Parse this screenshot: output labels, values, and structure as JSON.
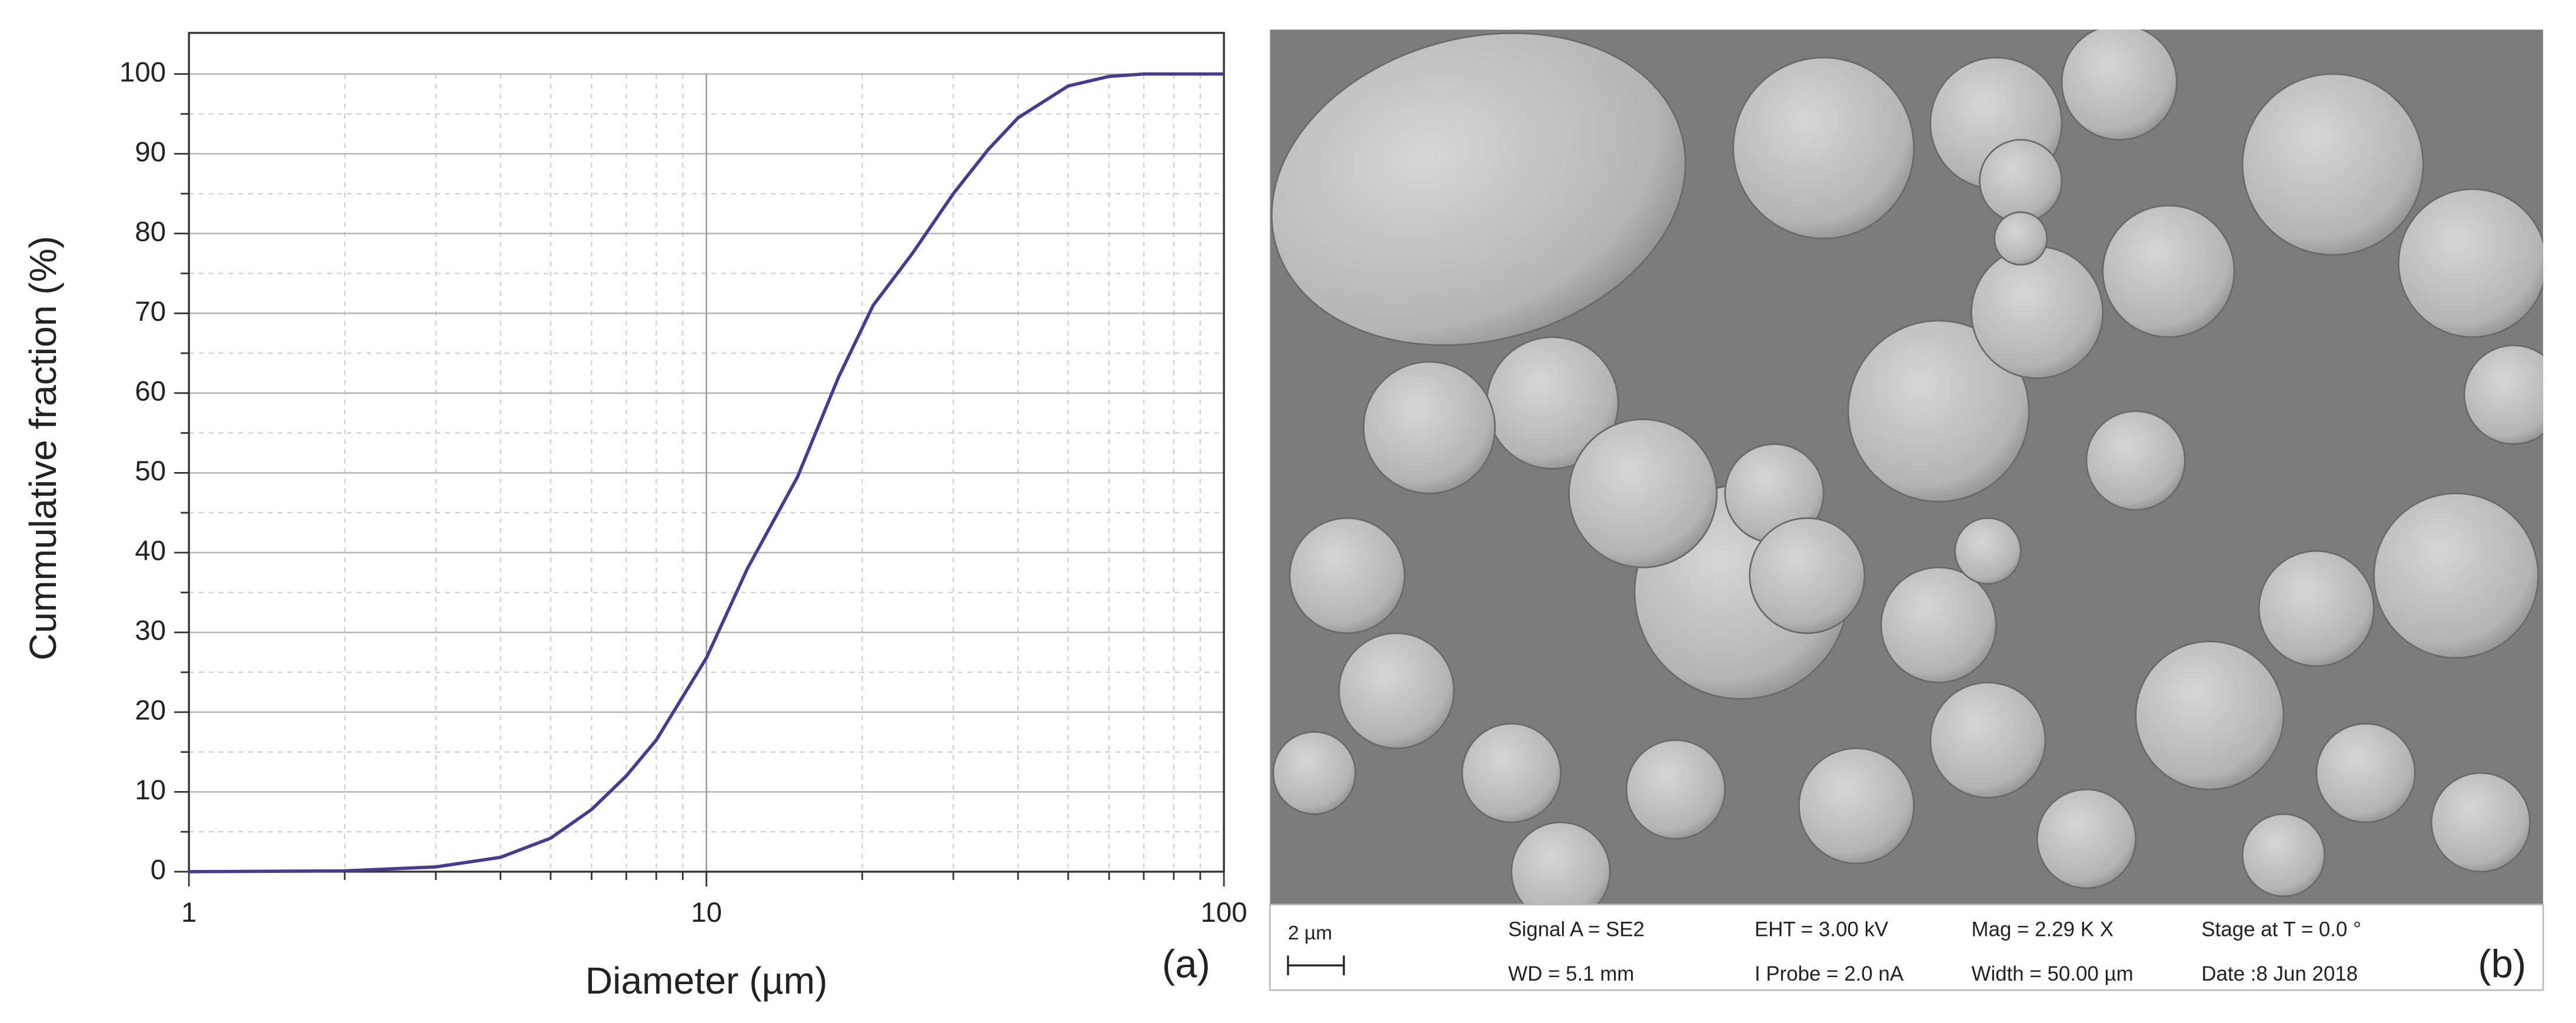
{
  "chart_data": {
    "type": "line",
    "xlabel": "Diameter (µm)",
    "ylabel": "Cummulative fraction (%)",
    "annotation": "(a)",
    "xscale": "log",
    "x": [
      1,
      2,
      3,
      4,
      5,
      6,
      7,
      8,
      10,
      12,
      15,
      18,
      21,
      25,
      30,
      35,
      40,
      50,
      60,
      70,
      100
    ],
    "values": [
      0,
      0.1,
      0.6,
      1.8,
      4.2,
      7.8,
      12,
      16.5,
      26.8,
      38,
      49.5,
      62,
      71,
      77.5,
      85,
      90.5,
      94.5,
      98.5,
      99.7,
      100,
      100
    ],
    "color": "#4b3a8c",
    "xlim": [
      1,
      100
    ],
    "xticks": [
      1,
      10,
      100
    ],
    "ylim": [
      0,
      100
    ],
    "yticks": [
      0,
      10,
      20,
      30,
      40,
      50,
      60,
      70,
      80,
      90,
      100
    ],
    "xminor": [
      2,
      3,
      4,
      5,
      6,
      7,
      8,
      9,
      20,
      30,
      40,
      50,
      60,
      70,
      80,
      90
    ],
    "yminor": [
      5,
      15,
      25,
      35,
      45,
      55,
      65,
      75,
      85,
      95
    ],
    "grid": true
  },
  "sem_panel": {
    "annotation": "(b)",
    "scale_bar": "2 µm",
    "info": [
      [
        "Signal A = SE2",
        "EHT = 3.00 kV",
        "Mag = 2.29 K X",
        "Stage at T = 0.0 °"
      ],
      [
        "WD = 5.1 mm",
        "I Probe = 2.0 nA",
        "Width = 50.00 µm",
        "Date :8 Jun 2018"
      ]
    ]
  }
}
